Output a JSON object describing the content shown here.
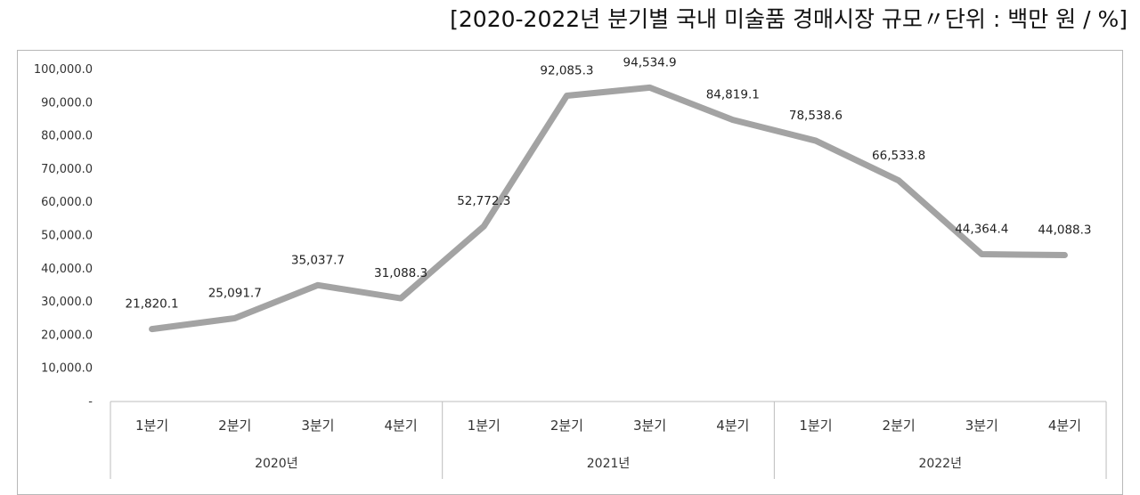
{
  "title": "[2020-2022년 분기별 국내 미술품 경매시장 규모〃단위 : 백만 원 / %]",
  "chart_data": {
    "type": "line",
    "title": "[2020-2022년 분기별 국내 미술품 경매시장 규모〃단위 : 백만 원 / %]",
    "xlabel": "",
    "ylabel": "",
    "ylim": [
      0,
      100000
    ],
    "yticks": [
      0,
      10000,
      20000,
      30000,
      40000,
      50000,
      60000,
      70000,
      80000,
      90000,
      100000
    ],
    "ytick_labels": [
      "-",
      "10,000.0",
      "20,000.0",
      "30,000.0",
      "40,000.0",
      "50,000.0",
      "60,000.0",
      "70,000.0",
      "80,000.0",
      "90,000.0",
      "100,000.0"
    ],
    "groups": [
      "2020년",
      "2021년",
      "2022년"
    ],
    "categories": [
      "1분기",
      "2분기",
      "3분기",
      "4분기",
      "1분기",
      "2분기",
      "3분기",
      "4분기",
      "1분기",
      "2분기",
      "3분기",
      "4분기"
    ],
    "values": [
      21820.1,
      25091.7,
      35037.7,
      31088.3,
      52772.3,
      92085.3,
      94534.9,
      84819.1,
      78538.6,
      66533.8,
      44364.4,
      44088.3
    ],
    "data_labels": [
      "21,820.1",
      "25,091.7",
      "35,037.7",
      "31,088.3",
      "52,772.3",
      "92,085.3",
      "94,534.9",
      "84,819.1",
      "78,538.6",
      "66,533.8",
      "44,364.4",
      "44,088.3"
    ],
    "line_color": "#a3a3a3",
    "grid": false,
    "legend": "none"
  }
}
